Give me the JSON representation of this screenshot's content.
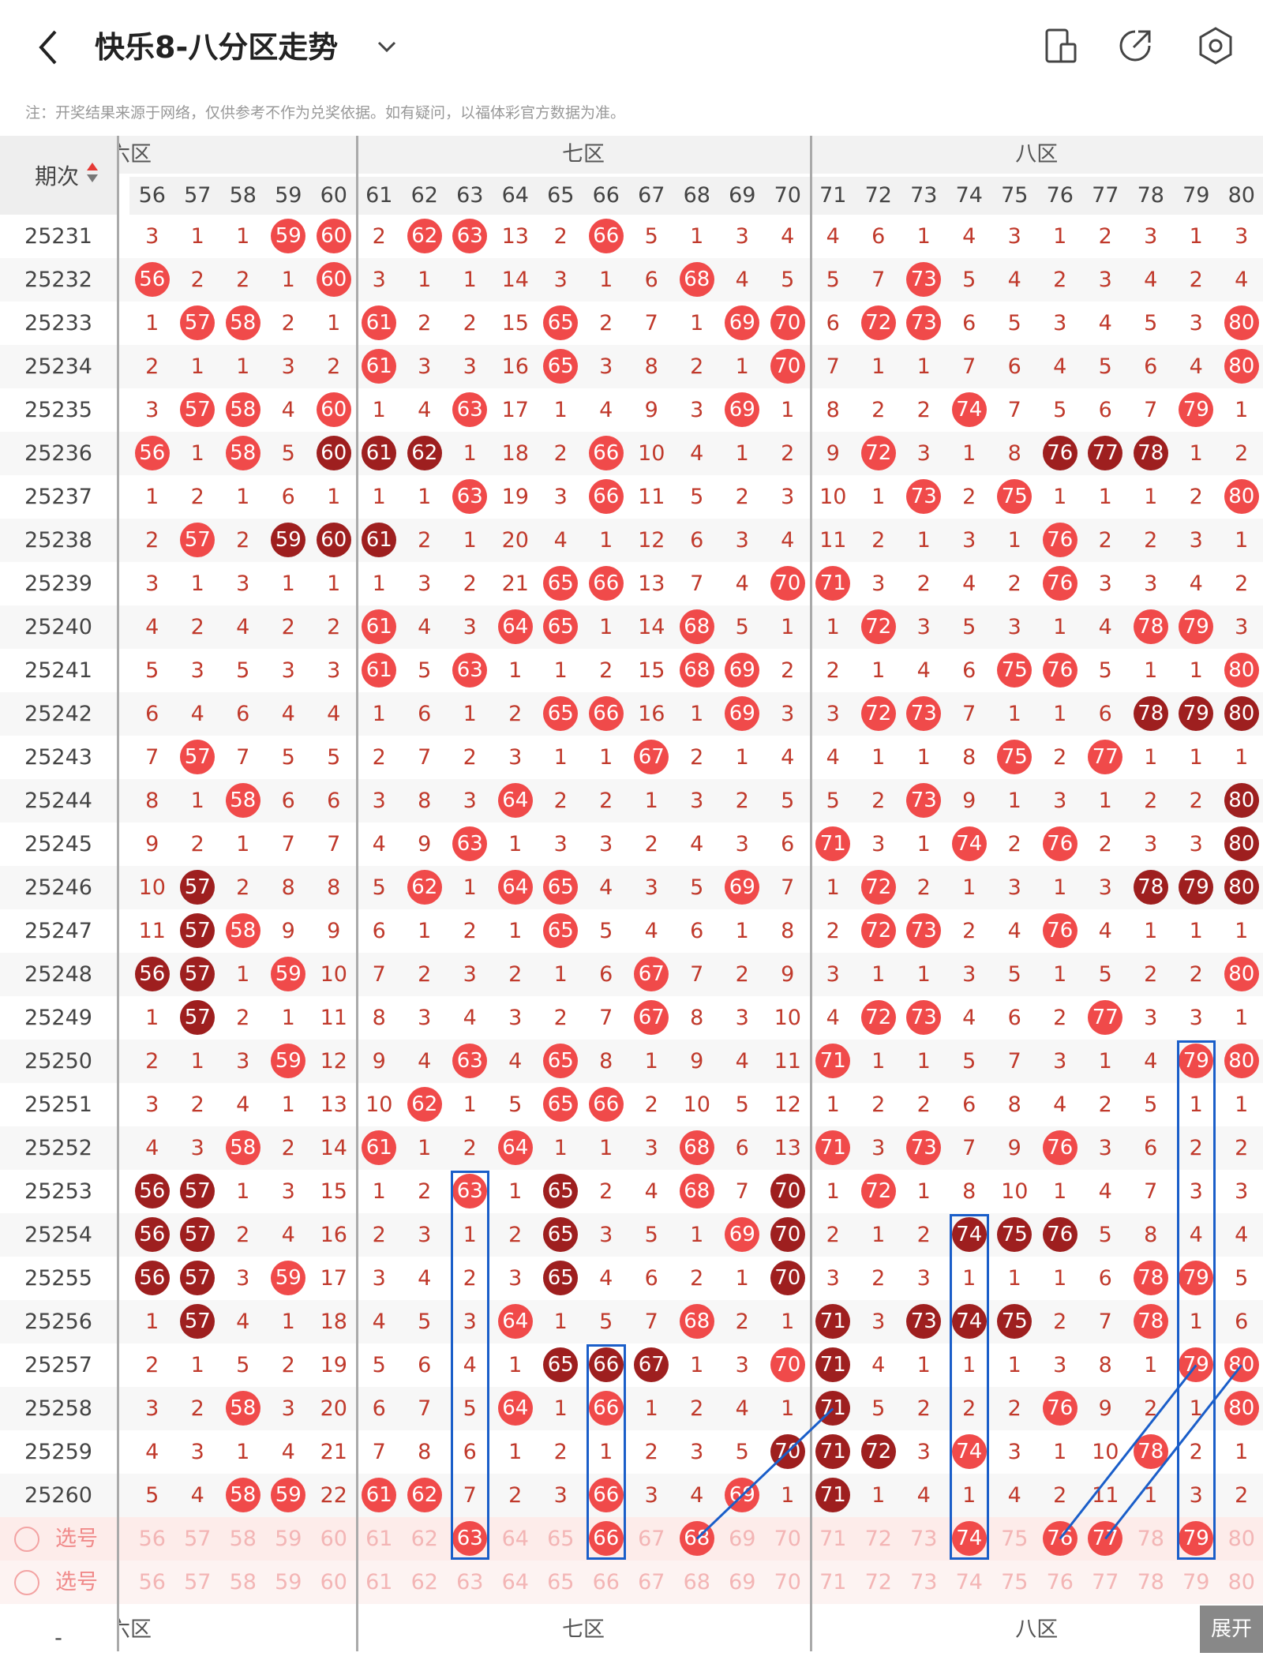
{
  "header": {
    "title": "快乐8-八分区走势",
    "icons": [
      "back-arrow-icon",
      "chevron-down-icon",
      "device-icon",
      "share-icon",
      "settings-icon"
    ]
  },
  "note": "注：开奖结果来源于网络，仅供参考不作为兑奖依据。如有疑问，以福体彩官方数据为准。",
  "table": {
    "period_header": "期次",
    "zones": [
      "六区",
      "七区",
      "八区"
    ],
    "columns": [
      56,
      57,
      58,
      59,
      60,
      61,
      62,
      63,
      64,
      65,
      66,
      67,
      68,
      69,
      70,
      71,
      72,
      73,
      74,
      75,
      76,
      77,
      78,
      79,
      80
    ],
    "select_label": "选号",
    "rows": [
      {
        "p": "25231",
        "v": [
          "3",
          "1",
          "1",
          "*59",
          "*60",
          "2",
          "*62",
          "*63",
          "13",
          "2",
          "*66",
          "5",
          "1",
          "3",
          "4",
          "4",
          "6",
          "1",
          "4",
          "3",
          "1",
          "2",
          "3",
          "1",
          "3"
        ]
      },
      {
        "p": "25232",
        "v": [
          "*56",
          "2",
          "2",
          "1",
          "*60",
          "3",
          "1",
          "1",
          "14",
          "3",
          "1",
          "6",
          "*68",
          "4",
          "5",
          "5",
          "7",
          "*73",
          "5",
          "4",
          "2",
          "3",
          "4",
          "2",
          "4"
        ]
      },
      {
        "p": "25233",
        "v": [
          "1",
          "*57",
          "*58",
          "2",
          "1",
          "*61",
          "2",
          "2",
          "15",
          "*65",
          "2",
          "7",
          "1",
          "*69",
          "*70",
          "6",
          "*72",
          "*73",
          "6",
          "5",
          "3",
          "4",
          "5",
          "3",
          "*80"
        ]
      },
      {
        "p": "25234",
        "v": [
          "2",
          "1",
          "1",
          "3",
          "2",
          "*61",
          "3",
          "3",
          "16",
          "*65",
          "3",
          "8",
          "2",
          "1",
          "*70",
          "7",
          "1",
          "1",
          "7",
          "6",
          "4",
          "5",
          "6",
          "4",
          "*80"
        ]
      },
      {
        "p": "25235",
        "v": [
          "3",
          "*57",
          "*58",
          "4",
          "*60",
          "1",
          "4",
          "*63",
          "17",
          "1",
          "4",
          "9",
          "3",
          "*69",
          "1",
          "8",
          "2",
          "2",
          "*74",
          "7",
          "5",
          "6",
          "7",
          "*79",
          "1"
        ]
      },
      {
        "p": "25236",
        "v": [
          "*56",
          "1",
          "*58",
          "5",
          "#60",
          "#61",
          "#62",
          "1",
          "18",
          "2",
          "*66",
          "10",
          "4",
          "1",
          "2",
          "9",
          "*72",
          "3",
          "1",
          "8",
          "#76",
          "#77",
          "#78",
          "1",
          "2"
        ]
      },
      {
        "p": "25237",
        "v": [
          "1",
          "2",
          "1",
          "6",
          "1",
          "1",
          "1",
          "*63",
          "19",
          "3",
          "*66",
          "11",
          "5",
          "2",
          "3",
          "10",
          "1",
          "*73",
          "2",
          "*75",
          "1",
          "1",
          "1",
          "2",
          "*80"
        ]
      },
      {
        "p": "25238",
        "v": [
          "2",
          "*57",
          "2",
          "#59",
          "#60",
          "#61",
          "2",
          "1",
          "20",
          "4",
          "1",
          "12",
          "6",
          "3",
          "4",
          "11",
          "2",
          "1",
          "3",
          "1",
          "*76",
          "2",
          "2",
          "3",
          "1"
        ]
      },
      {
        "p": "25239",
        "v": [
          "3",
          "1",
          "3",
          "1",
          "1",
          "1",
          "3",
          "2",
          "21",
          "*65",
          "*66",
          "13",
          "7",
          "4",
          "*70",
          "*71",
          "3",
          "2",
          "4",
          "2",
          "*76",
          "3",
          "3",
          "4",
          "2"
        ]
      },
      {
        "p": "25240",
        "v": [
          "4",
          "2",
          "4",
          "2",
          "2",
          "*61",
          "4",
          "3",
          "*64",
          "*65",
          "1",
          "14",
          "*68",
          "5",
          "1",
          "1",
          "*72",
          "3",
          "5",
          "3",
          "1",
          "4",
          "*78",
          "*79",
          "3"
        ]
      },
      {
        "p": "25241",
        "v": [
          "5",
          "3",
          "5",
          "3",
          "3",
          "*61",
          "5",
          "*63",
          "1",
          "1",
          "2",
          "15",
          "*68",
          "*69",
          "2",
          "2",
          "1",
          "4",
          "6",
          "*75",
          "*76",
          "5",
          "1",
          "1",
          "*80"
        ]
      },
      {
        "p": "25242",
        "v": [
          "6",
          "4",
          "6",
          "4",
          "4",
          "1",
          "6",
          "1",
          "2",
          "*65",
          "*66",
          "16",
          "1",
          "*69",
          "3",
          "3",
          "*72",
          "*73",
          "7",
          "1",
          "1",
          "6",
          "#78",
          "#79",
          "#80"
        ]
      },
      {
        "p": "25243",
        "v": [
          "7",
          "*57",
          "7",
          "5",
          "5",
          "2",
          "7",
          "2",
          "3",
          "1",
          "1",
          "*67",
          "2",
          "1",
          "4",
          "4",
          "1",
          "1",
          "8",
          "*75",
          "2",
          "*77",
          "1",
          "1",
          "1"
        ]
      },
      {
        "p": "25244",
        "v": [
          "8",
          "1",
          "*58",
          "6",
          "6",
          "3",
          "8",
          "3",
          "*64",
          "2",
          "2",
          "1",
          "3",
          "2",
          "5",
          "5",
          "2",
          "*73",
          "9",
          "1",
          "3",
          "1",
          "2",
          "2",
          "#80"
        ]
      },
      {
        "p": "25245",
        "v": [
          "9",
          "2",
          "1",
          "7",
          "7",
          "4",
          "9",
          "*63",
          "1",
          "3",
          "3",
          "2",
          "4",
          "3",
          "6",
          "*71",
          "3",
          "1",
          "*74",
          "2",
          "*76",
          "2",
          "3",
          "3",
          "#80"
        ]
      },
      {
        "p": "25246",
        "v": [
          "10",
          "#57",
          "2",
          "8",
          "8",
          "5",
          "*62",
          "1",
          "*64",
          "*65",
          "4",
          "3",
          "5",
          "*69",
          "7",
          "1",
          "*72",
          "2",
          "1",
          "3",
          "1",
          "3",
          "#78",
          "#79",
          "#80"
        ]
      },
      {
        "p": "25247",
        "v": [
          "11",
          "#57",
          "*58",
          "9",
          "9",
          "6",
          "1",
          "2",
          "1",
          "*65",
          "5",
          "4",
          "6",
          "1",
          "8",
          "2",
          "*72",
          "*73",
          "2",
          "4",
          "*76",
          "4",
          "1",
          "1",
          "1"
        ]
      },
      {
        "p": "25248",
        "v": [
          "#56",
          "#57",
          "1",
          "*59",
          "10",
          "7",
          "2",
          "3",
          "2",
          "1",
          "6",
          "*67",
          "7",
          "2",
          "9",
          "3",
          "1",
          "1",
          "3",
          "5",
          "1",
          "5",
          "2",
          "2",
          "*80"
        ]
      },
      {
        "p": "25249",
        "v": [
          "1",
          "#57",
          "2",
          "1",
          "11",
          "8",
          "3",
          "4",
          "3",
          "2",
          "7",
          "*67",
          "8",
          "3",
          "10",
          "4",
          "*72",
          "*73",
          "4",
          "6",
          "2",
          "*77",
          "3",
          "3",
          "1"
        ]
      },
      {
        "p": "25250",
        "v": [
          "2",
          "1",
          "3",
          "*59",
          "12",
          "9",
          "4",
          "*63",
          "4",
          "*65",
          "8",
          "1",
          "9",
          "4",
          "11",
          "*71",
          "1",
          "1",
          "5",
          "7",
          "3",
          "1",
          "4",
          "*79",
          "*80"
        ]
      },
      {
        "p": "25251",
        "v": [
          "3",
          "2",
          "4",
          "1",
          "13",
          "10",
          "*62",
          "1",
          "5",
          "*65",
          "*66",
          "2",
          "10",
          "5",
          "12",
          "1",
          "2",
          "2",
          "6",
          "8",
          "4",
          "2",
          "5",
          "1",
          "1"
        ]
      },
      {
        "p": "25252",
        "v": [
          "4",
          "3",
          "*58",
          "2",
          "14",
          "*61",
          "1",
          "2",
          "*64",
          "1",
          "1",
          "3",
          "*68",
          "6",
          "13",
          "*71",
          "3",
          "*73",
          "7",
          "9",
          "*76",
          "3",
          "6",
          "2",
          "2"
        ]
      },
      {
        "p": "25253",
        "v": [
          "#56",
          "#57",
          "1",
          "3",
          "15",
          "1",
          "2",
          "*63",
          "1",
          "#65",
          "2",
          "4",
          "*68",
          "7",
          "#70",
          "1",
          "*72",
          "1",
          "8",
          "10",
          "1",
          "4",
          "7",
          "3",
          "3"
        ]
      },
      {
        "p": "25254",
        "v": [
          "#56",
          "#57",
          "2",
          "4",
          "16",
          "2",
          "3",
          "1",
          "2",
          "#65",
          "3",
          "5",
          "1",
          "*69",
          "#70",
          "2",
          "1",
          "2",
          "#74",
          "#75",
          "#76",
          "5",
          "8",
          "4",
          "4"
        ]
      },
      {
        "p": "25255",
        "v": [
          "#56",
          "#57",
          "3",
          "*59",
          "17",
          "3",
          "4",
          "2",
          "3",
          "#65",
          "4",
          "6",
          "2",
          "1",
          "#70",
          "3",
          "2",
          "3",
          "1",
          "1",
          "1",
          "6",
          "*78",
          "*79",
          "5"
        ]
      },
      {
        "p": "25256",
        "v": [
          "1",
          "#57",
          "4",
          "1",
          "18",
          "4",
          "5",
          "3",
          "*64",
          "1",
          "5",
          "7",
          "*68",
          "2",
          "1",
          "#71",
          "3",
          "#73",
          "#74",
          "#75",
          "2",
          "7",
          "*78",
          "1",
          "6"
        ]
      },
      {
        "p": "25257",
        "v": [
          "2",
          "1",
          "5",
          "2",
          "19",
          "5",
          "6",
          "4",
          "1",
          "#65",
          "#66",
          "#67",
          "1",
          "3",
          "*70",
          "#71",
          "4",
          "1",
          "1",
          "1",
          "3",
          "8",
          "1",
          "*79",
          "*80"
        ]
      },
      {
        "p": "25258",
        "v": [
          "3",
          "2",
          "*58",
          "3",
          "20",
          "6",
          "7",
          "5",
          "*64",
          "1",
          "*66",
          "1",
          "2",
          "4",
          "1",
          "#71",
          "5",
          "2",
          "2",
          "2",
          "*76",
          "9",
          "2",
          "1",
          "*80"
        ]
      },
      {
        "p": "25259",
        "v": [
          "4",
          "3",
          "1",
          "4",
          "21",
          "7",
          "8",
          "6",
          "1",
          "2",
          "1",
          "2",
          "3",
          "5",
          "#70",
          "#71",
          "#72",
          "3",
          "*74",
          "3",
          "1",
          "10",
          "*78",
          "2",
          "1"
        ]
      },
      {
        "p": "25260",
        "v": [
          "5",
          "4",
          "*58",
          "*59",
          "22",
          "*61",
          "*62",
          "7",
          "2",
          "3",
          "*66",
          "3",
          "4",
          "*69",
          "1",
          "#71",
          "1",
          "4",
          "1",
          "4",
          "2",
          "11",
          "1",
          "3",
          "2"
        ]
      }
    ],
    "select_row1_balls": [
      "63",
      "66",
      "68",
      "74",
      "76",
      "77",
      "79"
    ]
  },
  "footer": {
    "zones": [
      "六区",
      "七区",
      "八区"
    ],
    "expand": "展开",
    "dash": "-"
  }
}
